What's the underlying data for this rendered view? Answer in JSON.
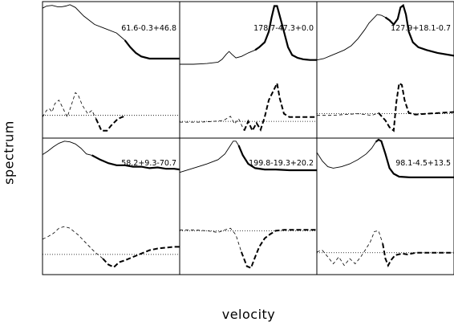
{
  "axis_labels": {
    "x": "velocity",
    "y": "spectrum"
  },
  "chart_data": {
    "type": "line",
    "layout": "2 rows x 3 columns, shared axes, no tick labels",
    "xlabel": "velocity",
    "ylabel": "spectrum",
    "line_styles": {
      "spectrum": "solid thin, thicker segment on far wing",
      "derivative": "dashed, thicker dashes on far wing",
      "zero_line": "dotted"
    },
    "panels": [
      {
        "label": "61.6-0.3+46.8",
        "baseline": 0.78,
        "spectrum": [
          [
            0,
            0.07
          ],
          [
            0.03,
            0.04
          ],
          [
            0.07,
            0.03
          ],
          [
            0.11,
            0.05
          ],
          [
            0.14,
            0.05
          ],
          [
            0.17,
            0.04
          ],
          [
            0.2,
            0.02
          ],
          [
            0.24,
            0.06
          ],
          [
            0.3,
            0.18
          ],
          [
            0.38,
            0.3
          ],
          [
            0.46,
            0.36
          ],
          [
            0.54,
            0.42
          ],
          [
            0.6,
            0.52
          ],
          [
            0.64,
            0.62
          ],
          [
            0.68,
            0.7
          ],
          [
            0.72,
            0.75
          ],
          [
            0.78,
            0.78
          ],
          [
            0.86,
            0.78
          ],
          [
            1.0,
            0.78
          ]
        ],
        "spectrum_thick_from": 0.62,
        "derivative": [
          [
            0,
            0.8
          ],
          [
            0.03,
            0.72
          ],
          [
            0.05,
            0.7
          ],
          [
            0.07,
            0.74
          ],
          [
            0.09,
            0.64
          ],
          [
            0.12,
            0.6
          ],
          [
            0.15,
            0.7
          ],
          [
            0.18,
            0.8
          ],
          [
            0.21,
            0.66
          ],
          [
            0.24,
            0.51
          ],
          [
            0.26,
            0.54
          ],
          [
            0.29,
            0.66
          ],
          [
            0.33,
            0.76
          ],
          [
            0.36,
            0.72
          ],
          [
            0.39,
            0.82
          ],
          [
            0.43,
            0.96
          ],
          [
            0.47,
            0.96
          ],
          [
            0.5,
            0.9
          ],
          [
            0.55,
            0.82
          ],
          [
            0.58,
            0.8
          ],
          [
            0.6,
            0.79
          ]
        ],
        "derivative_thick_from": 0.42,
        "zero": 0.78
      },
      {
        "label": "178.7-47.3+0.0",
        "baseline": 0.85,
        "spectrum": [
          [
            0,
            0.86
          ],
          [
            0.1,
            0.86
          ],
          [
            0.2,
            0.85
          ],
          [
            0.28,
            0.83
          ],
          [
            0.31,
            0.79
          ],
          [
            0.34,
            0.72
          ],
          [
            0.36,
            0.68
          ],
          [
            0.38,
            0.72
          ],
          [
            0.41,
            0.77
          ],
          [
            0.45,
            0.75
          ],
          [
            0.5,
            0.7
          ],
          [
            0.55,
            0.66
          ],
          [
            0.58,
            0.62
          ],
          [
            0.62,
            0.55
          ],
          [
            0.65,
            0.4
          ],
          [
            0.67,
            0.2
          ],
          [
            0.69,
            0.04
          ],
          [
            0.71,
            0.04
          ],
          [
            0.73,
            0.18
          ],
          [
            0.76,
            0.4
          ],
          [
            0.79,
            0.62
          ],
          [
            0.82,
            0.73
          ],
          [
            0.86,
            0.77
          ],
          [
            0.9,
            0.79
          ],
          [
            0.95,
            0.8
          ],
          [
            1.0,
            0.8
          ]
        ],
        "spectrum_thick_from": 0.57,
        "derivative": [
          [
            0,
            0.86
          ],
          [
            0.15,
            0.86
          ],
          [
            0.25,
            0.85
          ],
          [
            0.32,
            0.84
          ],
          [
            0.37,
            0.79
          ],
          [
            0.4,
            0.88
          ],
          [
            0.43,
            0.82
          ],
          [
            0.47,
            0.96
          ],
          [
            0.5,
            0.85
          ],
          [
            0.53,
            0.96
          ],
          [
            0.56,
            0.87
          ],
          [
            0.59,
            0.95
          ],
          [
            0.62,
            0.8
          ],
          [
            0.65,
            0.6
          ],
          [
            0.68,
            0.5
          ],
          [
            0.71,
            0.4
          ],
          [
            0.73,
            0.58
          ],
          [
            0.76,
            0.76
          ],
          [
            0.8,
            0.8
          ],
          [
            0.88,
            0.8
          ],
          [
            1.0,
            0.8
          ]
        ],
        "derivative_thick_from": 0.48,
        "zero": 0.85
      },
      {
        "label": "127.9+18.1-0.7",
        "baseline": 0.75,
        "spectrum": [
          [
            0,
            0.8
          ],
          [
            0.05,
            0.78
          ],
          [
            0.1,
            0.74
          ],
          [
            0.15,
            0.7
          ],
          [
            0.2,
            0.66
          ],
          [
            0.25,
            0.6
          ],
          [
            0.3,
            0.5
          ],
          [
            0.35,
            0.37
          ],
          [
            0.38,
            0.28
          ],
          [
            0.41,
            0.22
          ],
          [
            0.44,
            0.16
          ],
          [
            0.47,
            0.17
          ],
          [
            0.5,
            0.2
          ],
          [
            0.53,
            0.24
          ],
          [
            0.56,
            0.3
          ],
          [
            0.59,
            0.22
          ],
          [
            0.61,
            0.06
          ],
          [
            0.63,
            0.03
          ],
          [
            0.65,
            0.16
          ],
          [
            0.67,
            0.4
          ],
          [
            0.7,
            0.55
          ],
          [
            0.74,
            0.62
          ],
          [
            0.8,
            0.66
          ],
          [
            0.88,
            0.7
          ],
          [
            1.0,
            0.74
          ]
        ],
        "spectrum_thick_from": 0.5,
        "derivative": [
          [
            0,
            0.78
          ],
          [
            0.1,
            0.78
          ],
          [
            0.2,
            0.77
          ],
          [
            0.3,
            0.76
          ],
          [
            0.4,
            0.78
          ],
          [
            0.45,
            0.75
          ],
          [
            0.5,
            0.84
          ],
          [
            0.53,
            0.92
          ],
          [
            0.56,
            0.96
          ],
          [
            0.58,
            0.62
          ],
          [
            0.6,
            0.4
          ],
          [
            0.62,
            0.42
          ],
          [
            0.64,
            0.6
          ],
          [
            0.67,
            0.75
          ],
          [
            0.72,
            0.77
          ],
          [
            0.8,
            0.76
          ],
          [
            0.9,
            0.75
          ],
          [
            1.0,
            0.74
          ]
        ],
        "derivative_thick_from": 0.46,
        "zero": 0.76
      },
      {
        "label": "58.2+9.3-70.7",
        "baseline": 0.85,
        "spectrum": [
          [
            0,
            0.21
          ],
          [
            0.04,
            0.16
          ],
          [
            0.08,
            0.1
          ],
          [
            0.12,
            0.05
          ],
          [
            0.16,
            0.02
          ],
          [
            0.2,
            0.03
          ],
          [
            0.24,
            0.06
          ],
          [
            0.28,
            0.12
          ],
          [
            0.32,
            0.2
          ],
          [
            0.36,
            0.22
          ],
          [
            0.42,
            0.28
          ],
          [
            0.48,
            0.33
          ],
          [
            0.54,
            0.36
          ],
          [
            0.6,
            0.36
          ],
          [
            0.66,
            0.38
          ],
          [
            0.72,
            0.38
          ],
          [
            0.78,
            0.4
          ],
          [
            0.84,
            0.39
          ],
          [
            0.9,
            0.41
          ],
          [
            0.96,
            0.41
          ],
          [
            1.0,
            0.42
          ]
        ],
        "spectrum_thick_from": 0.38,
        "derivative": [
          [
            0,
            0.63
          ],
          [
            0.04,
            0.6
          ],
          [
            0.08,
            0.56
          ],
          [
            0.12,
            0.5
          ],
          [
            0.16,
            0.48
          ],
          [
            0.2,
            0.5
          ],
          [
            0.26,
            0.58
          ],
          [
            0.32,
            0.68
          ],
          [
            0.38,
            0.78
          ],
          [
            0.44,
            0.86
          ],
          [
            0.48,
            0.93
          ],
          [
            0.52,
            0.96
          ],
          [
            0.56,
            0.9
          ],
          [
            0.6,
            0.88
          ],
          [
            0.66,
            0.84
          ],
          [
            0.72,
            0.8
          ],
          [
            0.78,
            0.76
          ],
          [
            0.84,
            0.74
          ],
          [
            0.9,
            0.73
          ],
          [
            0.96,
            0.72
          ],
          [
            1.0,
            0.72
          ]
        ],
        "derivative_thick_from": 0.44,
        "zero": 0.81
      },
      {
        "label": "199.8-19.3+20.2",
        "baseline": 0.54,
        "spectrum": [
          [
            0,
            0.46
          ],
          [
            0.1,
            0.4
          ],
          [
            0.2,
            0.34
          ],
          [
            0.28,
            0.28
          ],
          [
            0.33,
            0.2
          ],
          [
            0.37,
            0.08
          ],
          [
            0.39,
            0.02
          ],
          [
            0.41,
            0.02
          ],
          [
            0.43,
            0.08
          ],
          [
            0.46,
            0.22
          ],
          [
            0.5,
            0.34
          ],
          [
            0.55,
            0.4
          ],
          [
            0.62,
            0.42
          ],
          [
            0.7,
            0.42
          ],
          [
            0.8,
            0.43
          ],
          [
            0.9,
            0.43
          ],
          [
            1.0,
            0.43
          ]
        ],
        "spectrum_thick_from": 0.45,
        "derivative": [
          [
            0,
            0.52
          ],
          [
            0.1,
            0.52
          ],
          [
            0.2,
            0.53
          ],
          [
            0.28,
            0.55
          ],
          [
            0.33,
            0.52
          ],
          [
            0.37,
            0.5
          ],
          [
            0.41,
            0.58
          ],
          [
            0.45,
            0.78
          ],
          [
            0.49,
            0.95
          ],
          [
            0.52,
            0.97
          ],
          [
            0.55,
            0.84
          ],
          [
            0.58,
            0.72
          ],
          [
            0.62,
            0.62
          ],
          [
            0.66,
            0.57
          ],
          [
            0.7,
            0.53
          ],
          [
            0.76,
            0.52
          ],
          [
            0.84,
            0.52
          ],
          [
            1.0,
            0.52
          ]
        ],
        "derivative_thick_from": 0.48,
        "zero": 0.53
      },
      {
        "label": "98.1-4.5+13.5",
        "baseline": 0.57,
        "spectrum": [
          [
            0,
            0.18
          ],
          [
            0.04,
            0.3
          ],
          [
            0.08,
            0.38
          ],
          [
            0.12,
            0.4
          ],
          [
            0.18,
            0.38
          ],
          [
            0.24,
            0.34
          ],
          [
            0.3,
            0.28
          ],
          [
            0.36,
            0.2
          ],
          [
            0.4,
            0.12
          ],
          [
            0.43,
            0.03
          ],
          [
            0.45,
            0.0
          ],
          [
            0.47,
            0.02
          ],
          [
            0.5,
            0.2
          ],
          [
            0.53,
            0.4
          ],
          [
            0.56,
            0.48
          ],
          [
            0.6,
            0.52
          ],
          [
            0.68,
            0.53
          ],
          [
            0.78,
            0.53
          ],
          [
            1.0,
            0.53
          ]
        ],
        "spectrum_thick_from": 0.44,
        "derivative": [
          [
            0,
            0.78
          ],
          [
            0.04,
            0.76
          ],
          [
            0.08,
            0.84
          ],
          [
            0.12,
            0.92
          ],
          [
            0.16,
            0.84
          ],
          [
            0.2,
            0.94
          ],
          [
            0.24,
            0.86
          ],
          [
            0.28,
            0.92
          ],
          [
            0.32,
            0.84
          ],
          [
            0.36,
            0.74
          ],
          [
            0.39,
            0.66
          ],
          [
            0.42,
            0.54
          ],
          [
            0.45,
            0.53
          ],
          [
            0.48,
            0.68
          ],
          [
            0.5,
            0.86
          ],
          [
            0.52,
            0.94
          ],
          [
            0.54,
            0.88
          ],
          [
            0.57,
            0.82
          ],
          [
            0.62,
            0.8
          ],
          [
            0.66,
            0.81
          ],
          [
            0.72,
            0.79
          ],
          [
            0.8,
            0.79
          ],
          [
            1.0,
            0.79
          ]
        ],
        "derivative_thick_from": 0.48,
        "zero": 0.79
      }
    ]
  }
}
